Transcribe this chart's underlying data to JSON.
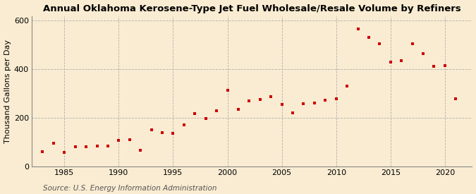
{
  "title": "Annual Oklahoma Kerosene-Type Jet Fuel Wholesale/Resale Volume by Refiners",
  "ylabel": "Thousand Gallons per Day",
  "source": "Source: U.S. Energy Information Administration",
  "background_color": "#faecd2",
  "marker_color": "#cc0000",
  "years": [
    1983,
    1984,
    1985,
    1986,
    1987,
    1988,
    1989,
    1990,
    1991,
    1992,
    1993,
    1994,
    1995,
    1996,
    1997,
    1998,
    1999,
    2000,
    2001,
    2002,
    2003,
    2004,
    2005,
    2006,
    2007,
    2008,
    2009,
    2010,
    2011,
    2012,
    2013,
    2014,
    2015,
    2016,
    2017,
    2018,
    2019,
    2020,
    2021
  ],
  "values": [
    62,
    95,
    57,
    82,
    82,
    84,
    84,
    107,
    109,
    66,
    152,
    140,
    137,
    170,
    218,
    197,
    230,
    315,
    235,
    270,
    275,
    288,
    255,
    220,
    258,
    260,
    273,
    278,
    330,
    565,
    530,
    505,
    430,
    435,
    505,
    465,
    412,
    415,
    280
  ],
  "ylim": [
    0,
    620
  ],
  "yticks": [
    0,
    200,
    400,
    600
  ],
  "xticks": [
    1985,
    1990,
    1995,
    2000,
    2005,
    2010,
    2015,
    2020
  ],
  "grid_color": "#b0b0b0",
  "title_fontsize": 9.5,
  "label_fontsize": 8,
  "tick_fontsize": 8,
  "source_fontsize": 7.5
}
